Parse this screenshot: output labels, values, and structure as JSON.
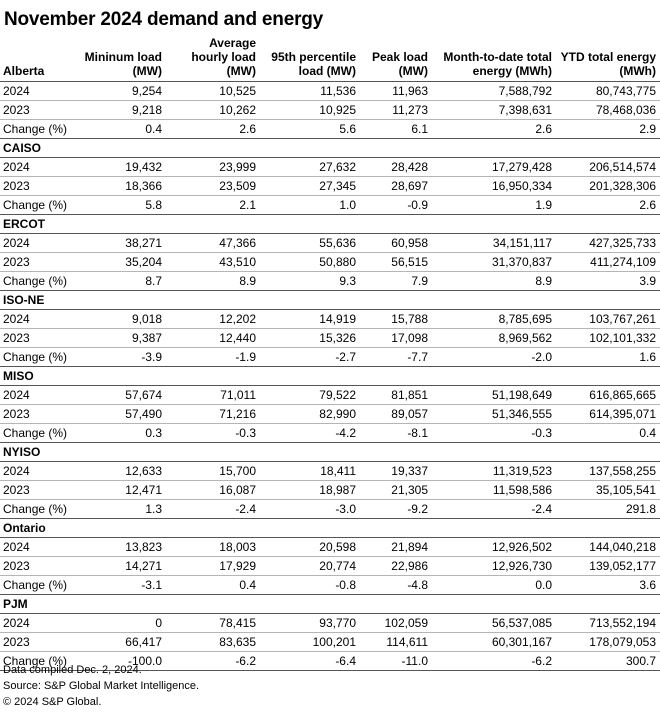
{
  "title": "November 2024 demand and energy",
  "header": {
    "first_region": "Alberta",
    "columns": [
      "Mininum load (MW)",
      "Average hourly load (MW)",
      "95th percentile load (MW)",
      "Peak load (MW)",
      "Month-to-date total energy (MWh)",
      "YTD total energy (MWh)"
    ]
  },
  "row_labels": {
    "y2024": "2024",
    "y2023": "2023",
    "change": "Change (%)"
  },
  "regions": [
    {
      "name": "Alberta",
      "y2024": [
        "9,254",
        "10,525",
        "11,536",
        "11,963",
        "7,588,792",
        "80,743,775"
      ],
      "y2023": [
        "9,218",
        "10,262",
        "10,925",
        "11,273",
        "7,398,631",
        "78,468,036"
      ],
      "change": [
        "0.4",
        "2.6",
        "5.6",
        "6.1",
        "2.6",
        "2.9"
      ]
    },
    {
      "name": "CAISO",
      "y2024": [
        "19,432",
        "23,999",
        "27,632",
        "28,428",
        "17,279,428",
        "206,514,574"
      ],
      "y2023": [
        "18,366",
        "23,509",
        "27,345",
        "28,697",
        "16,950,334",
        "201,328,306"
      ],
      "change": [
        "5.8",
        "2.1",
        "1.0",
        "-0.9",
        "1.9",
        "2.6"
      ]
    },
    {
      "name": "ERCOT",
      "y2024": [
        "38,271",
        "47,366",
        "55,636",
        "60,958",
        "34,151,117",
        "427,325,733"
      ],
      "y2023": [
        "35,204",
        "43,510",
        "50,880",
        "56,515",
        "31,370,837",
        "411,274,109"
      ],
      "change": [
        "8.7",
        "8.9",
        "9.3",
        "7.9",
        "8.9",
        "3.9"
      ]
    },
    {
      "name": "ISO-NE",
      "y2024": [
        "9,018",
        "12,202",
        "14,919",
        "15,788",
        "8,785,695",
        "103,767,261"
      ],
      "y2023": [
        "9,387",
        "12,440",
        "15,326",
        "17,098",
        "8,969,562",
        "102,101,332"
      ],
      "change": [
        "-3.9",
        "-1.9",
        "-2.7",
        "-7.7",
        "-2.0",
        "1.6"
      ]
    },
    {
      "name": "MISO",
      "y2024": [
        "57,674",
        "71,011",
        "79,522",
        "81,851",
        "51,198,649",
        "616,865,665"
      ],
      "y2023": [
        "57,490",
        "71,216",
        "82,990",
        "89,057",
        "51,346,555",
        "614,395,071"
      ],
      "change": [
        "0.3",
        "-0.3",
        "-4.2",
        "-8.1",
        "-0.3",
        "0.4"
      ]
    },
    {
      "name": "NYISO",
      "y2024": [
        "12,633",
        "15,700",
        "18,411",
        "19,337",
        "11,319,523",
        "137,558,255"
      ],
      "y2023": [
        "12,471",
        "16,087",
        "18,987",
        "21,305",
        "11,598,586",
        "35,105,541"
      ],
      "change": [
        "1.3",
        "-2.4",
        "-3.0",
        "-9.2",
        "-2.4",
        "291.8"
      ]
    },
    {
      "name": "Ontario",
      "y2024": [
        "13,823",
        "18,003",
        "20,598",
        "21,894",
        "12,926,502",
        "144,040,218"
      ],
      "y2023": [
        "14,271",
        "17,929",
        "20,774",
        "22,986",
        "12,926,730",
        "139,052,177"
      ],
      "change": [
        "-3.1",
        "0.4",
        "-0.8",
        "-4.8",
        "0.0",
        "3.6"
      ]
    },
    {
      "name": "PJM",
      "y2024": [
        "0",
        "78,415",
        "93,770",
        "102,059",
        "56,537,085",
        "713,552,194"
      ],
      "y2023": [
        "66,417",
        "83,635",
        "100,201",
        "114,611",
        "60,301,167",
        "178,079,053"
      ],
      "change": [
        "-100.0",
        "-6.2",
        "-6.4",
        "-11.0",
        "-6.2",
        "300.7"
      ]
    }
  ],
  "footer": {
    "compiled": "Data compiled Dec. 2, 2024.",
    "source": "Source: S&P Global Market Intelligence.",
    "copyright": "© 2024 S&P Global."
  }
}
